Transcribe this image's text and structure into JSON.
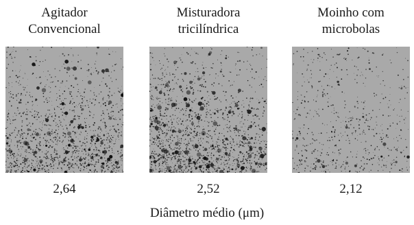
{
  "panels": [
    {
      "title_line1": "Agitador",
      "title_line2": "Convencional",
      "value": "2,64"
    },
    {
      "title_line1": "Misturadora",
      "title_line2": "tricilíndrica",
      "value": "2,52"
    },
    {
      "title_line1": "Moinho com",
      "title_line2": "microbolas",
      "value": "2,12"
    }
  ],
  "caption": "Diâmetro médio (μm)",
  "colors": {
    "micrograph_background": "#a9a9a9",
    "particle": "#111111"
  }
}
